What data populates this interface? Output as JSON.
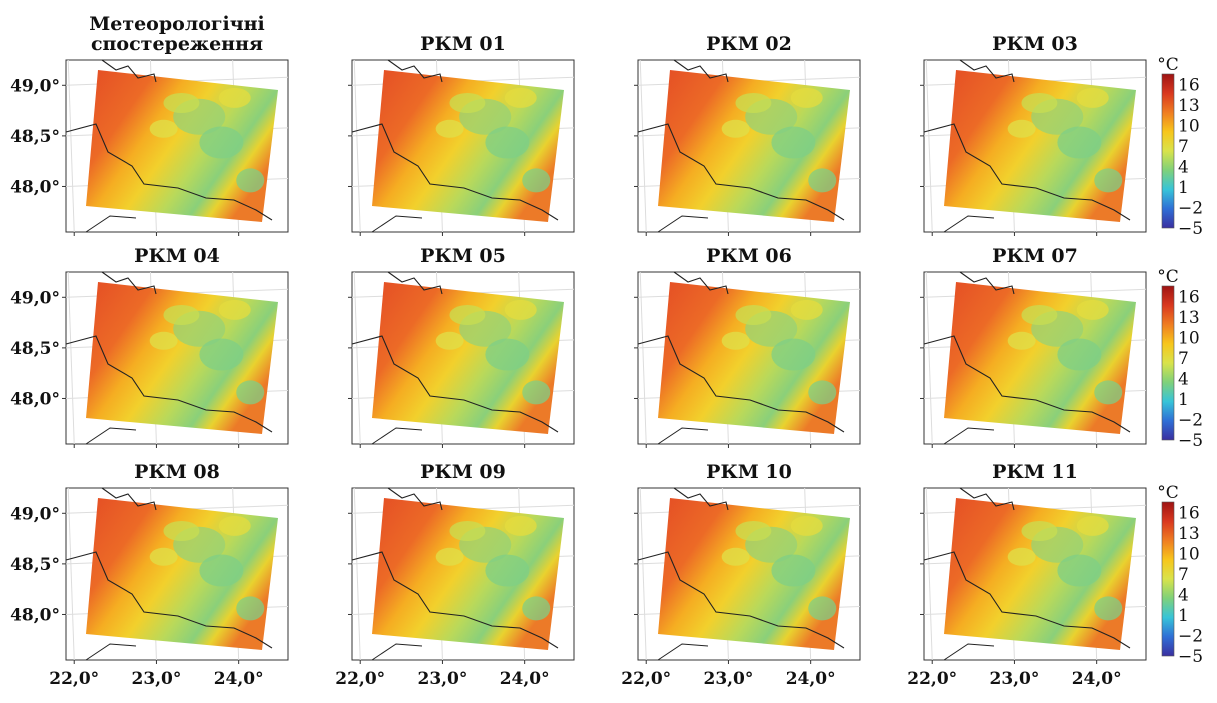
{
  "chart_data": {
    "type": "heatmap",
    "grid": {
      "rows": 3,
      "cols": 4
    },
    "panels": [
      {
        "title_lines": [
          "Метеорологічні",
          "спостереження"
        ]
      },
      {
        "title_lines": [
          "РКМ 01"
        ]
      },
      {
        "title_lines": [
          "РКМ 02"
        ]
      },
      {
        "title_lines": [
          "РКМ 03"
        ]
      },
      {
        "title_lines": [
          "РКМ 04"
        ]
      },
      {
        "title_lines": [
          "РКМ 05"
        ]
      },
      {
        "title_lines": [
          "РКМ 06"
        ]
      },
      {
        "title_lines": [
          "РКМ 07"
        ]
      },
      {
        "title_lines": [
          "РКМ 08"
        ]
      },
      {
        "title_lines": [
          "РКМ 09"
        ]
      },
      {
        "title_lines": [
          "РКМ 10"
        ]
      },
      {
        "title_lines": [
          "РКМ 11"
        ]
      }
    ],
    "y_ticks": [
      {
        "value": 49.0,
        "label": "49,0°"
      },
      {
        "value": 48.5,
        "label": "48,5°"
      },
      {
        "value": 48.0,
        "label": "48,0°"
      }
    ],
    "x_ticks": [
      {
        "value": 22.0,
        "label": "22,0°"
      },
      {
        "value": 23.0,
        "label": "23,0°"
      },
      {
        "value": 24.0,
        "label": "24,0°"
      }
    ],
    "xlim": [
      21.9,
      24.6
    ],
    "ylim": [
      47.55,
      49.25
    ],
    "colorbar": {
      "unit": "°C",
      "ticks": [
        {
          "value": 16,
          "label": "16"
        },
        {
          "value": 13,
          "label": "13"
        },
        {
          "value": 10,
          "label": "10"
        },
        {
          "value": 7,
          "label": "7"
        },
        {
          "value": 4,
          "label": "4"
        },
        {
          "value": 1,
          "label": "1"
        },
        {
          "value": -2,
          "label": "−2"
        },
        {
          "value": -5,
          "label": "−5"
        }
      ],
      "range": [
        -5,
        17.5
      ],
      "colors": [
        "#3a2fa0",
        "#2f6fd6",
        "#37c4d8",
        "#7fd17a",
        "#d9e34b",
        "#f7c61c",
        "#ef7d22",
        "#d9381f",
        "#9e1313"
      ]
    },
    "grid_on": true
  }
}
